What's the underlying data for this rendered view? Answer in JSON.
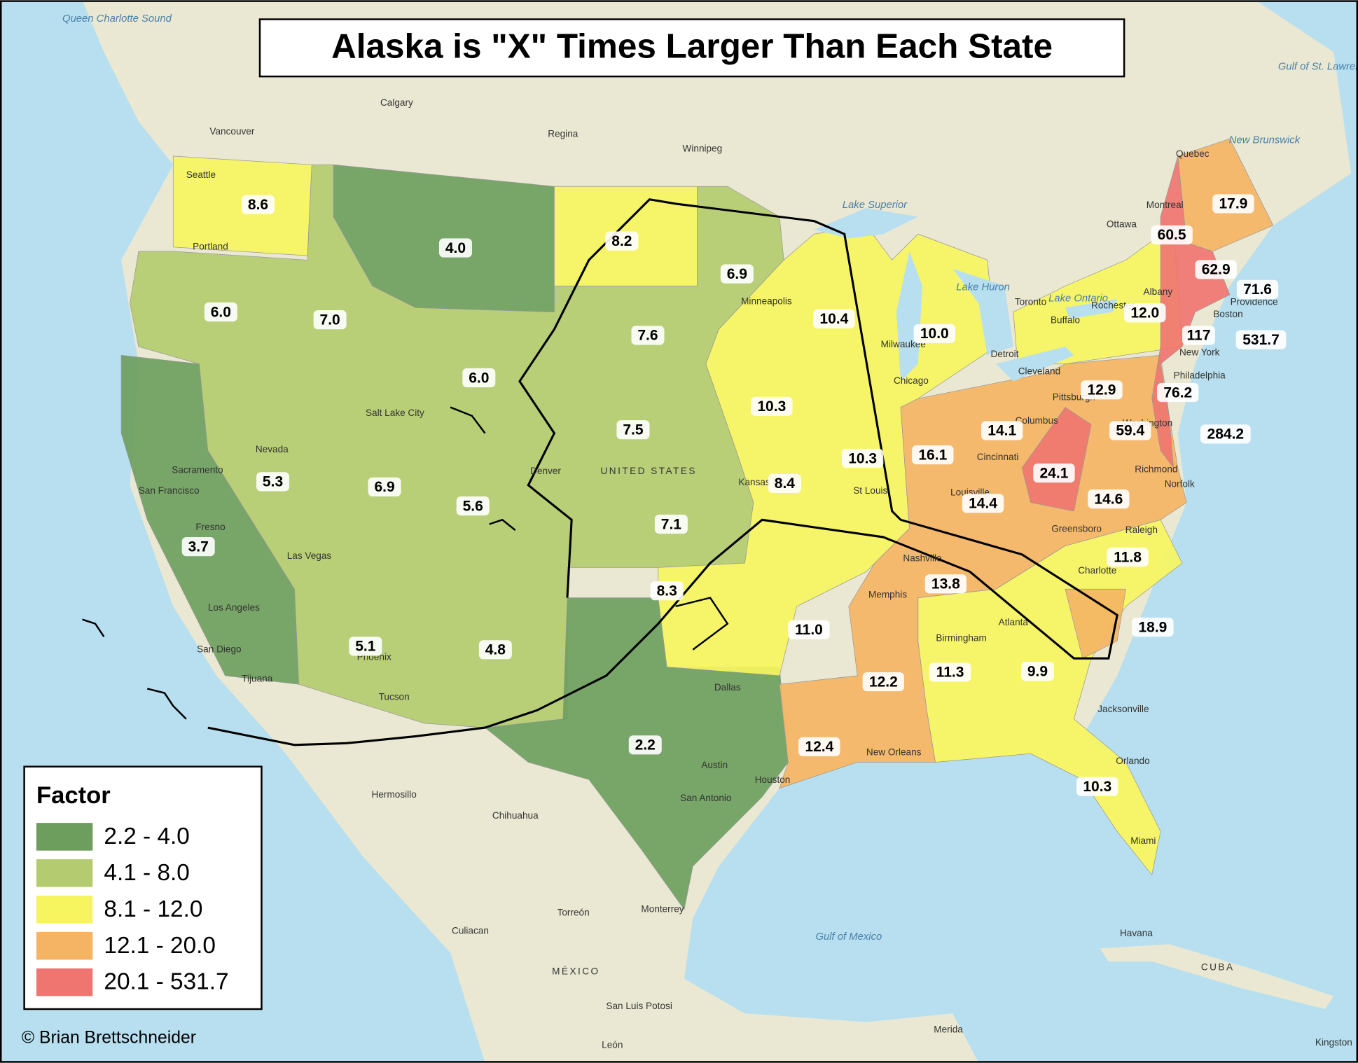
{
  "title": "Alaska is \"X\" Times Larger Than Each State",
  "legend": {
    "title": "Factor",
    "items": [
      {
        "label": "2.2 - 4.0",
        "color": "#6e9e5e"
      },
      {
        "label": "4.1 - 8.0",
        "color": "#b4cc6f"
      },
      {
        "label": "8.1 - 12.0",
        "color": "#f6f55f"
      },
      {
        "label": "12.1 - 20.0",
        "color": "#f4b464"
      },
      {
        "label": "20.1 - 531.7",
        "color": "#ef7570"
      }
    ]
  },
  "state_labels": [
    "8.6",
    "4.0",
    "8.2",
    "6.9",
    "6.0",
    "7.0",
    "10.4",
    "10.0",
    "7.6",
    "6.0",
    "10.3",
    "7.5",
    "5.3",
    "6.9",
    "5.6",
    "8.4",
    "10.3",
    "16.1",
    "14.1",
    "12.9",
    "76.2",
    "59.4",
    "284.2",
    "24.1",
    "14.6",
    "14.4",
    "7.1",
    "3.7",
    "8.3",
    "13.8",
    "11.8",
    "11.0",
    "18.9",
    "5.1",
    "4.8",
    "12.2",
    "11.3",
    "9.9",
    "2.2",
    "12.4",
    "10.3",
    "17.9",
    "60.5",
    "62.9",
    "71.6",
    "12.0",
    "117",
    "531.7"
  ],
  "places": [
    "Calgary",
    "Regina",
    "Winnipeg",
    "Vancouver",
    "Seattle",
    "Portland",
    "Sacramento",
    "San Francisco",
    "Fresno",
    "Los Angeles",
    "San Diego",
    "Tijuana",
    "Las Vegas",
    "Phoenix",
    "Tucson",
    "Salt Lake City",
    "Denver",
    "Nevada",
    "Minneapolis",
    "Chicago",
    "Milwaukee",
    "Detroit",
    "Cleveland",
    "Toronto",
    "Ottawa",
    "Montreal",
    "Quebec",
    "Cincinnati",
    "Louisville",
    "St Louis",
    "Kansas City",
    "Memphis",
    "Nashville",
    "Birmingham",
    "Atlanta",
    "Charlotte",
    "Raleigh",
    "Greensboro",
    "Richmond",
    "Norfolk",
    "Washington",
    "Philadelphia",
    "New York",
    "Boston",
    "Providence",
    "Albany",
    "Rochester",
    "Buffalo",
    "Pittsburgh",
    "Columbus",
    "Dallas",
    "Austin",
    "Houston",
    "San Antonio",
    "New Orleans",
    "Jacksonville",
    "Orlando",
    "Miami",
    "Havana",
    "CUBA",
    "Hermosillo",
    "Chihuahua",
    "Torreón",
    "Monterrey",
    "Culiacan",
    "MÉXICO",
    "San Luis Potosi",
    "Merida",
    "León",
    "Kingston",
    "UNITED STATES"
  ],
  "water_labels": [
    "Gulf of Mexico",
    "Lake Superior",
    "Lake Huron",
    "Lake Ontario",
    "Gulf of St. Lawrence",
    "New Brunswick",
    "Queen Charlotte Sound"
  ],
  "credit": "© Brian Brettschneider"
}
